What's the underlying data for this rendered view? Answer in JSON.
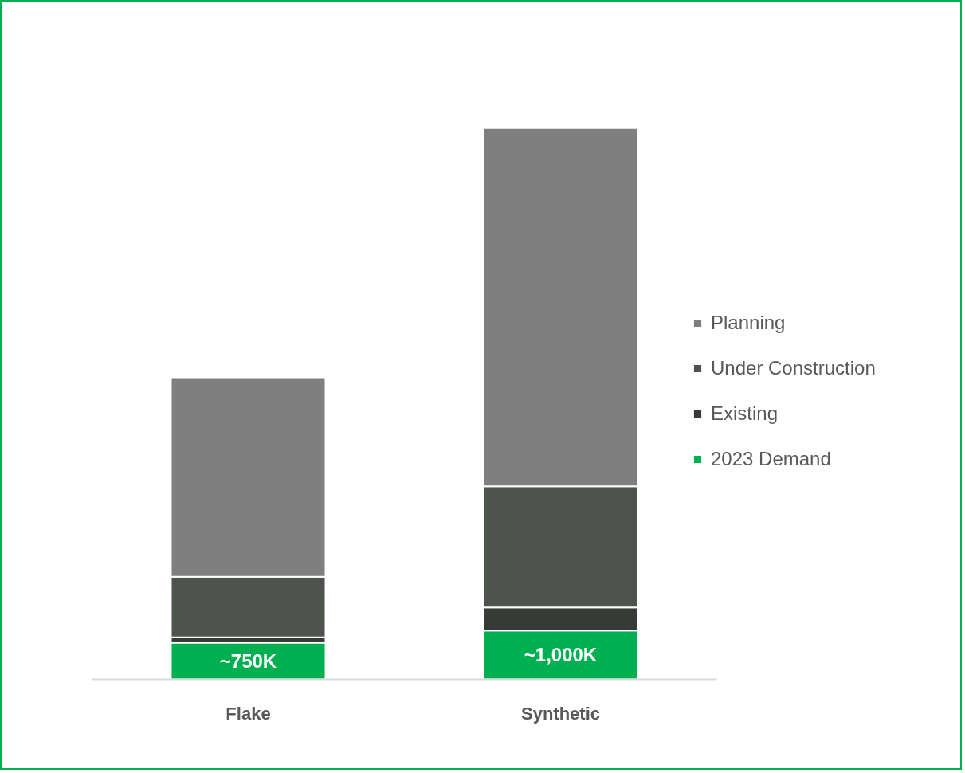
{
  "chart_data": {
    "type": "bar",
    "stacked": true,
    "categories": [
      "Flake",
      "Synthetic"
    ],
    "series": [
      {
        "name": "2023 Demand",
        "color": "#00b050",
        "values": [
          750,
          1000
        ],
        "value_labels": [
          "~750K",
          "~1,000K"
        ]
      },
      {
        "name": "Existing",
        "color": "#383a37",
        "values": [
          110,
          470
        ]
      },
      {
        "name": "Under Construction",
        "color": "#4f534d",
        "values": [
          1240,
          2480
        ]
      },
      {
        "name": "Planning",
        "color": "#7f7f7f",
        "values": [
          4080,
          7330
        ]
      }
    ],
    "legend": "right"
  }
}
